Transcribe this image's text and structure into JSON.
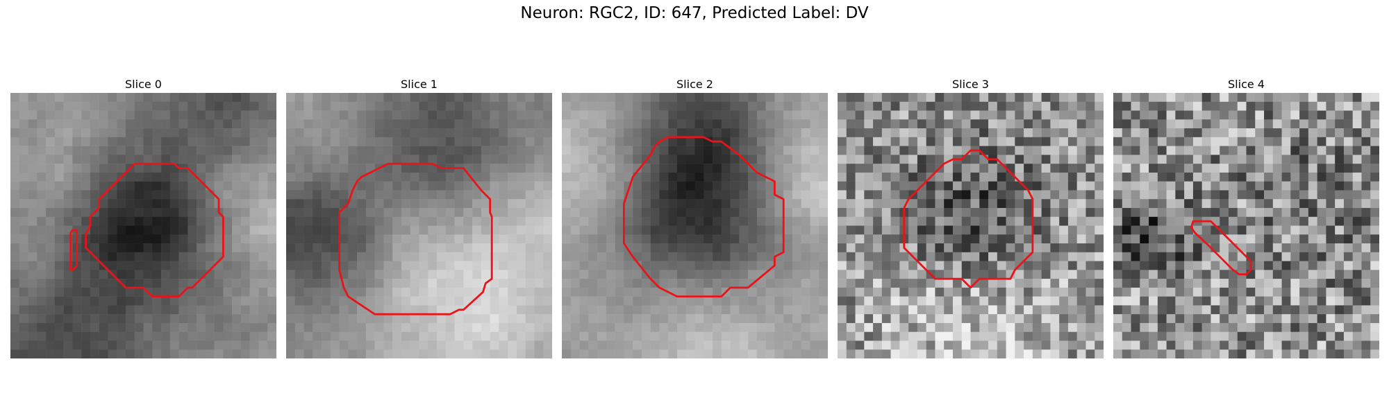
{
  "figure": {
    "title": "Neuron: RGC2, ID: 647, Predicted Label: DV"
  },
  "panels": [
    {
      "title": "Slice 0"
    },
    {
      "title": "Slice 1"
    },
    {
      "title": "Slice 2"
    },
    {
      "title": "Slice 3"
    },
    {
      "title": "Slice 4"
    }
  ],
  "colors": {
    "contour": "#e8141a"
  }
}
